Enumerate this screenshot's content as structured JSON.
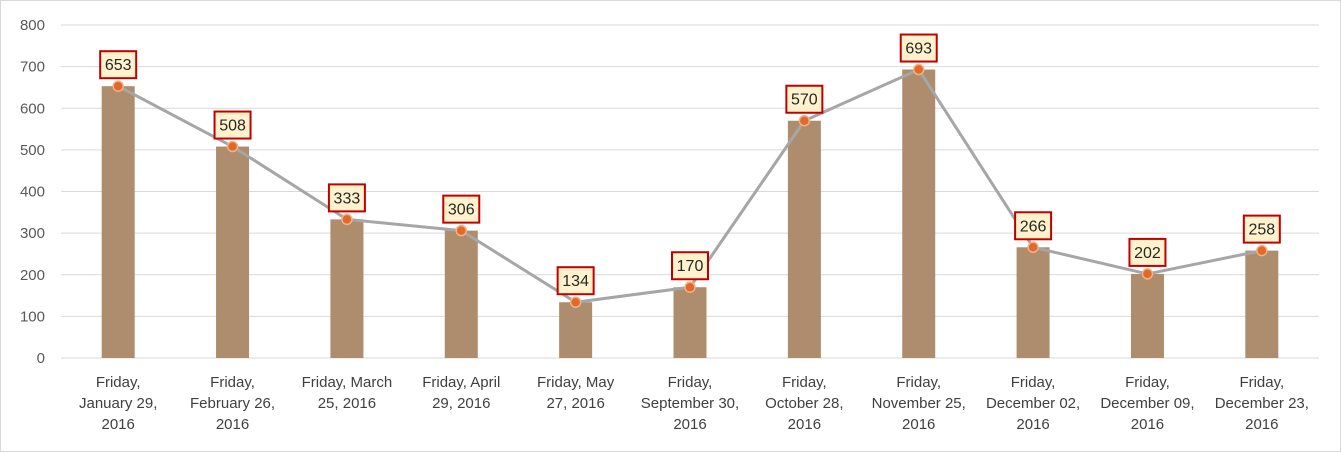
{
  "chart_data": {
    "type": "bar+line",
    "title": "",
    "xlabel": "",
    "ylabel": "",
    "ylim": [
      0,
      800
    ],
    "yticks": [
      0,
      100,
      200,
      300,
      400,
      500,
      600,
      700,
      800
    ],
    "grid": true,
    "legend": "none",
    "categories": [
      [
        "Friday,",
        "January 29,",
        "2016"
      ],
      [
        "Friday,",
        "February 26,",
        "2016"
      ],
      [
        "Friday, March",
        "25, 2016"
      ],
      [
        "Friday, April",
        "29, 2016"
      ],
      [
        "Friday, May",
        "27, 2016"
      ],
      [
        "Friday,",
        "September 30,",
        "2016"
      ],
      [
        "Friday,",
        "October 28,",
        "2016"
      ],
      [
        "Friday,",
        "November 25,",
        "2016"
      ],
      [
        "Friday,",
        "December 02,",
        "2016"
      ],
      [
        "Friday,",
        "December 09,",
        "2016"
      ],
      [
        "Friday,",
        "December 23,",
        "2016"
      ]
    ],
    "series": [
      {
        "type": "bar",
        "values": [
          653,
          508,
          333,
          306,
          134,
          170,
          570,
          693,
          266,
          202,
          258
        ],
        "color": "#ad8d6d"
      },
      {
        "type": "line",
        "values": [
          653,
          508,
          333,
          306,
          134,
          170,
          570,
          693,
          266,
          202,
          258
        ],
        "color": "#a6a6a6",
        "marker_color": "#e06a2c"
      }
    ],
    "data_labels": [
      653,
      508,
      333,
      306,
      134,
      170,
      570,
      693,
      266,
      202,
      258
    ],
    "label_style": {
      "fill": "#fff2cc",
      "border": "#c00000"
    }
  }
}
